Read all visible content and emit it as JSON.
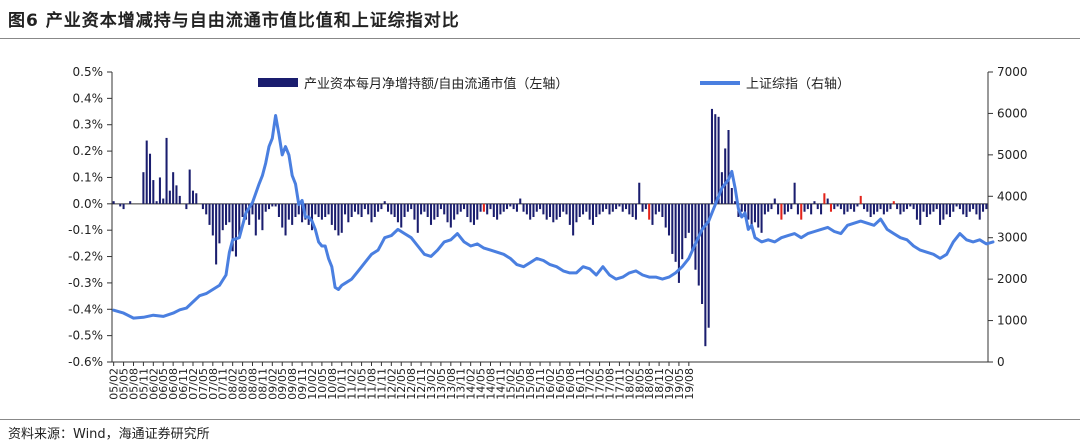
{
  "figure": {
    "title": "图6   产业资本增减持与自由流通市值比值和上证综指对比",
    "source": "资料来源：Wind，海通证券研究所"
  },
  "colors": {
    "bar_main": "#1a1d6e",
    "bar_highlight": "#e2231a",
    "line": "#4a7fe0",
    "axis": "#333333"
  },
  "chart_data": {
    "type": "bar+line",
    "legend": {
      "bar_label": "产业资本每月净增持额/自由流通市值（左轴）",
      "line_label": "上证综指（右轴）",
      "placement": "top"
    },
    "y_left": {
      "min": -0.006,
      "max": 0.005,
      "step": 0.001,
      "tick_labels": [
        "-0.6%",
        "-0.5%",
        "-0.4%",
        "-0.3%",
        "-0.2%",
        "-0.1%",
        "0.0%",
        "0.1%",
        "0.2%",
        "0.3%",
        "0.4%",
        "0.5%"
      ]
    },
    "y_right": {
      "min": 0,
      "max": 7000,
      "step": 1000,
      "tick_labels": [
        "0",
        "1000",
        "2000",
        "3000",
        "4000",
        "5000",
        "6000",
        "7000"
      ]
    },
    "x": {
      "start": "2005-02",
      "tick_labels": [
        "05/02",
        "05/05",
        "05/08",
        "05/11",
        "06/02",
        "06/05",
        "06/08",
        "06/11",
        "07/02",
        "07/05",
        "07/08",
        "07/11",
        "08/02",
        "08/05",
        "08/08",
        "08/11",
        "09/02",
        "09/05",
        "09/08",
        "09/11",
        "10/02",
        "10/05",
        "10/08",
        "10/11",
        "11/02",
        "11/05",
        "11/08",
        "11/11",
        "12/02",
        "12/05",
        "12/08",
        "12/11",
        "13/02",
        "13/05",
        "13/08",
        "13/11",
        "14/02",
        "14/05",
        "14/08",
        "14/11",
        "15/02",
        "15/05",
        "15/08",
        "15/11",
        "16/02",
        "16/05",
        "16/08",
        "16/11",
        "17/02",
        "17/05",
        "17/08",
        "17/11",
        "18/02",
        "18/05",
        "18/08",
        "18/11",
        "19/02",
        "19/05",
        "19/08"
      ]
    },
    "series": [
      {
        "name": "产业资本每月净增持额/自由流通市值（左轴）",
        "kind": "bar",
        "values": [
          0.0001,
          0.0,
          -0.0001,
          -0.0002,
          0.0,
          0.0001,
          0.0,
          0.0,
          0.0,
          0.0012,
          0.0024,
          0.0019,
          0.0009,
          0.0001,
          0.001,
          0.0002,
          0.0025,
          0.0005,
          0.0012,
          0.0007,
          0.0003,
          0.0,
          -0.0002,
          0.0013,
          0.0005,
          0.0004,
          0.0,
          -0.0002,
          -0.0004,
          -0.0008,
          -0.0012,
          -0.0023,
          -0.0015,
          -0.001,
          -0.0008,
          -0.0007,
          -0.0018,
          -0.002,
          -0.0012,
          -0.0005,
          -0.0006,
          -0.0008,
          -0.0004,
          -0.0012,
          -0.0006,
          -0.001,
          -0.0003,
          -0.0002,
          -0.0001,
          -0.0001,
          -0.0005,
          -0.0009,
          -0.0012,
          -0.0006,
          -0.0008,
          -0.0005,
          -0.0004,
          -0.0007,
          -0.0006,
          -0.0008,
          -0.001,
          -0.0004,
          -0.0005,
          -0.0006,
          -0.0005,
          -0.0004,
          -0.0008,
          -0.001,
          -0.0012,
          -0.0011,
          -0.0004,
          -0.0007,
          -0.0005,
          -0.0003,
          -0.0004,
          -0.0005,
          -0.0002,
          -0.0004,
          -0.0007,
          -0.0005,
          -0.0003,
          -0.0002,
          0.0001,
          -0.0003,
          -0.0004,
          -0.0005,
          -0.0007,
          -0.0009,
          -0.0005,
          -0.0003,
          -0.0002,
          -0.0006,
          -0.0011,
          -0.0004,
          -0.0003,
          -0.0005,
          -0.0008,
          -0.0006,
          -0.0005,
          -0.0002,
          -0.0004,
          -0.0007,
          -0.0009,
          -0.0006,
          -0.0004,
          -0.0003,
          -0.0002,
          -0.0005,
          -0.0007,
          -0.0008,
          -0.0006,
          -0.0003,
          -0.0003,
          -0.0004,
          -0.0002,
          -0.0005,
          -0.0006,
          -0.0004,
          -0.0003,
          -0.0002,
          -0.0001,
          -0.0002,
          -0.0003,
          0.0002,
          -0.0003,
          -0.0004,
          -0.0006,
          -0.0005,
          -0.0003,
          -0.0002,
          -0.0004,
          -0.0006,
          -0.0005,
          -0.0007,
          -0.0006,
          -0.0005,
          -0.0003,
          -0.0004,
          -0.0008,
          -0.0012,
          -0.0007,
          -0.0005,
          -0.0004,
          -0.0003,
          -0.0006,
          -0.0008,
          -0.0005,
          -0.0004,
          -0.0003,
          -0.0002,
          -0.0004,
          -0.0003,
          -0.0002,
          -0.0001,
          -0.0003,
          -0.0002,
          -0.0004,
          -0.0005,
          -0.0006,
          0.0008,
          -0.0003,
          -0.0002,
          -0.0006,
          -0.0008,
          -0.0004,
          -0.0003,
          -0.0005,
          -0.0009,
          -0.0012,
          -0.0019,
          -0.0022,
          -0.003,
          -0.0021,
          -0.0013,
          -0.0011,
          -0.0018,
          -0.0025,
          -0.0031,
          -0.0038,
          -0.0054,
          -0.0047,
          0.0036,
          0.0034,
          0.0033,
          0.0012,
          0.0021,
          0.0028,
          0.0006,
          0.0001,
          -0.0005,
          -0.0003,
          -0.0005,
          -0.0006,
          -0.0008,
          -0.0007,
          -0.0009,
          -0.0011,
          -0.0004,
          -0.0003,
          -0.0002,
          0.0002,
          -0.0004,
          -0.0006,
          -0.0004,
          -0.0003,
          -0.0002,
          0.0008,
          -0.0004,
          -0.0006,
          -0.0003,
          -0.0002,
          -0.0004,
          0.0001,
          -0.0002,
          -0.0004,
          0.0004,
          0.0002,
          -0.0003,
          -0.0002,
          -0.0001,
          -0.0002,
          -0.0004,
          -0.0003,
          -0.0002,
          -0.0003,
          -0.0001,
          0.0003,
          -0.0002,
          -0.0003,
          -0.0005,
          -0.0004,
          -0.0003,
          -0.0002,
          -0.0004,
          -0.0003,
          -0.0002,
          0.0001,
          -0.0002,
          -0.0004,
          -0.0003,
          -0.0002,
          -0.0001,
          -0.0002,
          -0.0006,
          -0.0008,
          -0.0003,
          -0.0005,
          -0.0004,
          -0.0003,
          -0.0002,
          -0.0008,
          -0.0006,
          -0.0004,
          -0.0005,
          -0.0003,
          -0.0001,
          -0.0002,
          -0.0004,
          -0.0005,
          -0.0003,
          -0.0002,
          -0.0004,
          -0.0006,
          -0.0003,
          -0.0002
        ],
        "highlight_indices": [
          112,
          162,
          202,
          208,
          215,
          217,
          226,
          236
        ]
      },
      {
        "name": "上证综指（右轴）",
        "kind": "line",
        "points": [
          [
            0,
            1250
          ],
          [
            3,
            1180
          ],
          [
            6,
            1060
          ],
          [
            9,
            1080
          ],
          [
            12,
            1130
          ],
          [
            15,
            1100
          ],
          [
            18,
            1180
          ],
          [
            20,
            1260
          ],
          [
            22,
            1300
          ],
          [
            24,
            1450
          ],
          [
            26,
            1600
          ],
          [
            28,
            1650
          ],
          [
            30,
            1750
          ],
          [
            32,
            1850
          ],
          [
            34,
            2100
          ],
          [
            35,
            2650
          ],
          [
            36,
            2950
          ],
          [
            38,
            3000
          ],
          [
            40,
            3600
          ],
          [
            42,
            3850
          ],
          [
            44,
            4300
          ],
          [
            45,
            4500
          ],
          [
            46,
            4800
          ],
          [
            47,
            5200
          ],
          [
            48,
            5400
          ],
          [
            49,
            5950
          ],
          [
            50,
            5500
          ],
          [
            51,
            5000
          ],
          [
            52,
            5200
          ],
          [
            53,
            5000
          ],
          [
            54,
            4500
          ],
          [
            55,
            4300
          ],
          [
            56,
            3800
          ],
          [
            57,
            3900
          ],
          [
            58,
            3500
          ],
          [
            59,
            3500
          ],
          [
            60,
            3400
          ],
          [
            61,
            3200
          ],
          [
            62,
            2900
          ],
          [
            63,
            2800
          ],
          [
            64,
            2800
          ],
          [
            65,
            2500
          ],
          [
            66,
            2300
          ],
          [
            67,
            1800
          ],
          [
            68,
            1750
          ],
          [
            69,
            1850
          ],
          [
            70,
            1900
          ],
          [
            72,
            2000
          ],
          [
            74,
            2200
          ],
          [
            76,
            2400
          ],
          [
            78,
            2600
          ],
          [
            80,
            2700
          ],
          [
            82,
            3000
          ],
          [
            84,
            3050
          ],
          [
            86,
            3200
          ],
          [
            88,
            3100
          ],
          [
            90,
            3000
          ],
          [
            92,
            2800
          ],
          [
            94,
            2600
          ],
          [
            96,
            2550
          ],
          [
            98,
            2700
          ],
          [
            100,
            2900
          ],
          [
            102,
            2950
          ],
          [
            104,
            3100
          ],
          [
            106,
            2900
          ],
          [
            108,
            2800
          ],
          [
            110,
            2850
          ],
          [
            112,
            2750
          ],
          [
            114,
            2700
          ],
          [
            116,
            2650
          ],
          [
            118,
            2600
          ],
          [
            120,
            2500
          ],
          [
            122,
            2350
          ],
          [
            124,
            2300
          ],
          [
            126,
            2400
          ],
          [
            128,
            2500
          ],
          [
            130,
            2450
          ],
          [
            132,
            2350
          ],
          [
            134,
            2300
          ],
          [
            136,
            2200
          ],
          [
            138,
            2150
          ],
          [
            140,
            2150
          ],
          [
            142,
            2300
          ],
          [
            144,
            2250
          ],
          [
            146,
            2100
          ],
          [
            148,
            2300
          ],
          [
            150,
            2100
          ],
          [
            152,
            2000
          ],
          [
            154,
            2050
          ],
          [
            156,
            2150
          ],
          [
            158,
            2200
          ],
          [
            160,
            2100
          ],
          [
            162,
            2050
          ],
          [
            164,
            2050
          ],
          [
            166,
            2000
          ],
          [
            168,
            2050
          ],
          [
            170,
            2150
          ],
          [
            172,
            2300
          ],
          [
            174,
            2500
          ],
          [
            176,
            2850
          ],
          [
            178,
            3200
          ],
          [
            180,
            3400
          ],
          [
            182,
            3800
          ],
          [
            184,
            4200
          ],
          [
            186,
            4400
          ],
          [
            187,
            4600
          ],
          [
            188,
            4200
          ],
          [
            189,
            3700
          ],
          [
            190,
            3500
          ],
          [
            191,
            3600
          ],
          [
            192,
            3200
          ],
          [
            193,
            3300
          ],
          [
            194,
            3000
          ],
          [
            196,
            2900
          ],
          [
            198,
            2950
          ],
          [
            200,
            2900
          ],
          [
            202,
            3000
          ],
          [
            204,
            3050
          ],
          [
            206,
            3100
          ],
          [
            208,
            3000
          ],
          [
            210,
            3100
          ],
          [
            212,
            3150
          ],
          [
            214,
            3200
          ],
          [
            216,
            3250
          ],
          [
            218,
            3150
          ],
          [
            220,
            3100
          ],
          [
            222,
            3300
          ],
          [
            224,
            3350
          ],
          [
            226,
            3400
          ],
          [
            228,
            3350
          ],
          [
            230,
            3300
          ],
          [
            232,
            3450
          ],
          [
            234,
            3200
          ],
          [
            236,
            3100
          ],
          [
            238,
            3000
          ],
          [
            240,
            2950
          ],
          [
            242,
            2800
          ],
          [
            244,
            2700
          ],
          [
            246,
            2650
          ],
          [
            248,
            2600
          ],
          [
            250,
            2500
          ],
          [
            252,
            2600
          ],
          [
            254,
            2900
          ],
          [
            256,
            3100
          ],
          [
            258,
            2950
          ],
          [
            260,
            2900
          ],
          [
            262,
            2950
          ],
          [
            264,
            2850
          ],
          [
            266,
            2900
          ]
        ]
      }
    ]
  }
}
